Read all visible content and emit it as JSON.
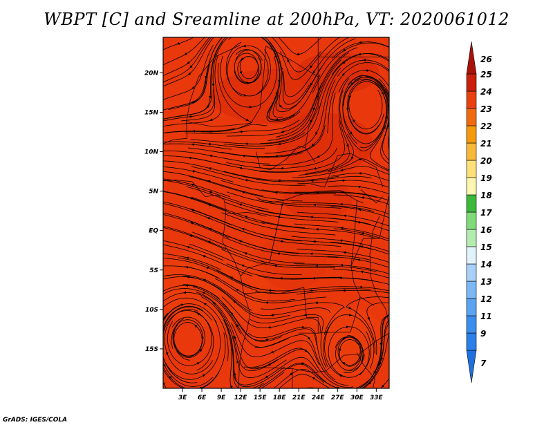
{
  "title": "WBPT [C] and Sreamline at 200hPa, VT: 2020061012",
  "credit": "GrADS: IGES/COLA",
  "map": {
    "lon_range": [
      0,
      35
    ],
    "lat_range": [
      -20,
      24.5
    ],
    "fill_colors": [
      "#e8380c",
      "#d92a08",
      "#f0490f"
    ],
    "lat_ticks": [
      {
        "value": 20,
        "label": "20N"
      },
      {
        "value": 15,
        "label": "15N"
      },
      {
        "value": 10,
        "label": "10N"
      },
      {
        "value": 5,
        "label": "5N"
      },
      {
        "value": 0,
        "label": "EQ"
      },
      {
        "value": -5,
        "label": "5S"
      },
      {
        "value": -10,
        "label": "10S"
      },
      {
        "value": -15,
        "label": "15S"
      }
    ],
    "lon_ticks": [
      {
        "value": 3,
        "label": "3E"
      },
      {
        "value": 6,
        "label": "6E"
      },
      {
        "value": 9,
        "label": "9E"
      },
      {
        "value": 12,
        "label": "12E"
      },
      {
        "value": 15,
        "label": "15E"
      },
      {
        "value": 18,
        "label": "18E"
      },
      {
        "value": 21,
        "label": "21E"
      },
      {
        "value": 24,
        "label": "24E"
      },
      {
        "value": 27,
        "label": "27E"
      },
      {
        "value": 30,
        "label": "30E"
      },
      {
        "value": 33,
        "label": "33E"
      }
    ]
  },
  "colorbar": {
    "levels": [
      {
        "label": "7",
        "color": "#1e6fe0"
      },
      {
        "label": "9",
        "color": "#2a7fe8"
      },
      {
        "label": "11",
        "color": "#3a8eee"
      },
      {
        "label": "12",
        "color": "#5aa3f0"
      },
      {
        "label": "13",
        "color": "#7cb8f4"
      },
      {
        "label": "14",
        "color": "#a8d0f8"
      },
      {
        "label": "15",
        "color": "#e0f2fa"
      },
      {
        "label": "16",
        "color": "#b4ecb0"
      },
      {
        "label": "17",
        "color": "#80da78"
      },
      {
        "label": "18",
        "color": "#3cb83a"
      },
      {
        "label": "19",
        "color": "#fdf6b0"
      },
      {
        "label": "20",
        "color": "#fde07a"
      },
      {
        "label": "21",
        "color": "#f8b838"
      },
      {
        "label": "22",
        "color": "#f59a0c"
      },
      {
        "label": "23",
        "color": "#f06a10"
      },
      {
        "label": "24",
        "color": "#e8400e"
      },
      {
        "label": "25",
        "color": "#c8200a"
      },
      {
        "label": "26",
        "color": "#a81208"
      }
    ]
  }
}
